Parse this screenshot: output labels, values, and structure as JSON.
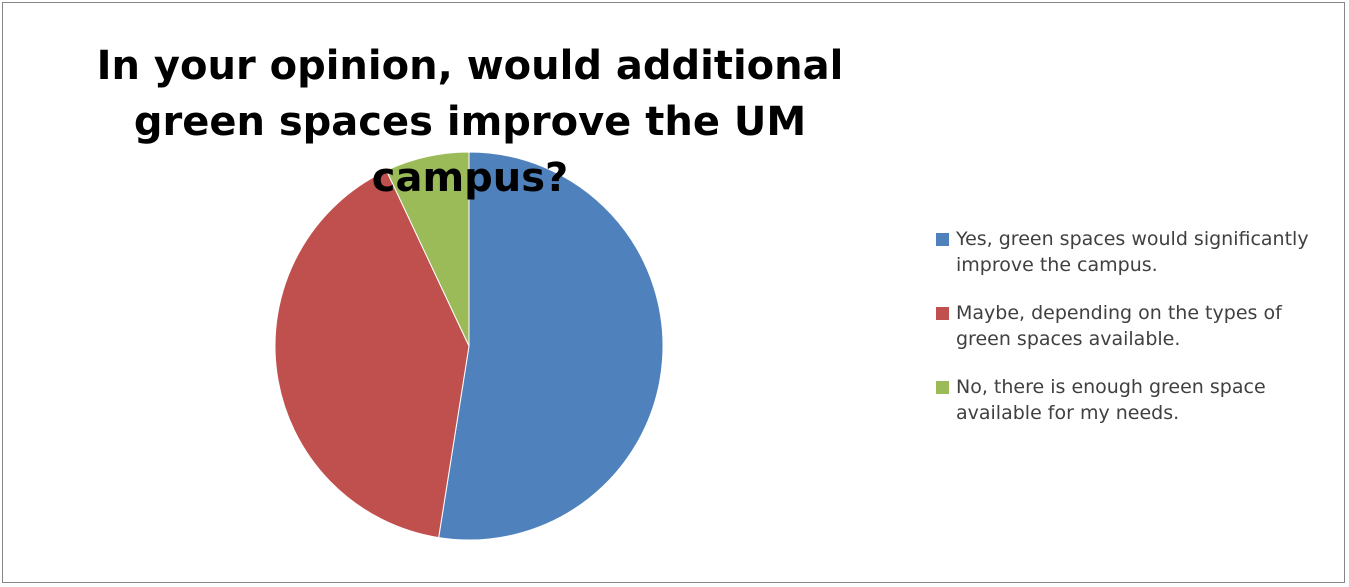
{
  "chart_data": {
    "type": "pie",
    "title": "In your opinion, would additional green spaces improve the UM campus?",
    "categories": [
      "Yes, green spaces would significantly improve the campus.",
      "Maybe, depending on the types of green spaces available.",
      "No, there is enough green space available for my needs."
    ],
    "values": [
      52.5,
      40.5,
      7.0
    ],
    "colors": [
      "#4F81BD",
      "#C0504D",
      "#9BBB59"
    ],
    "legend": "right",
    "start_angle_deg": 0,
    "direction": "clockwise"
  }
}
